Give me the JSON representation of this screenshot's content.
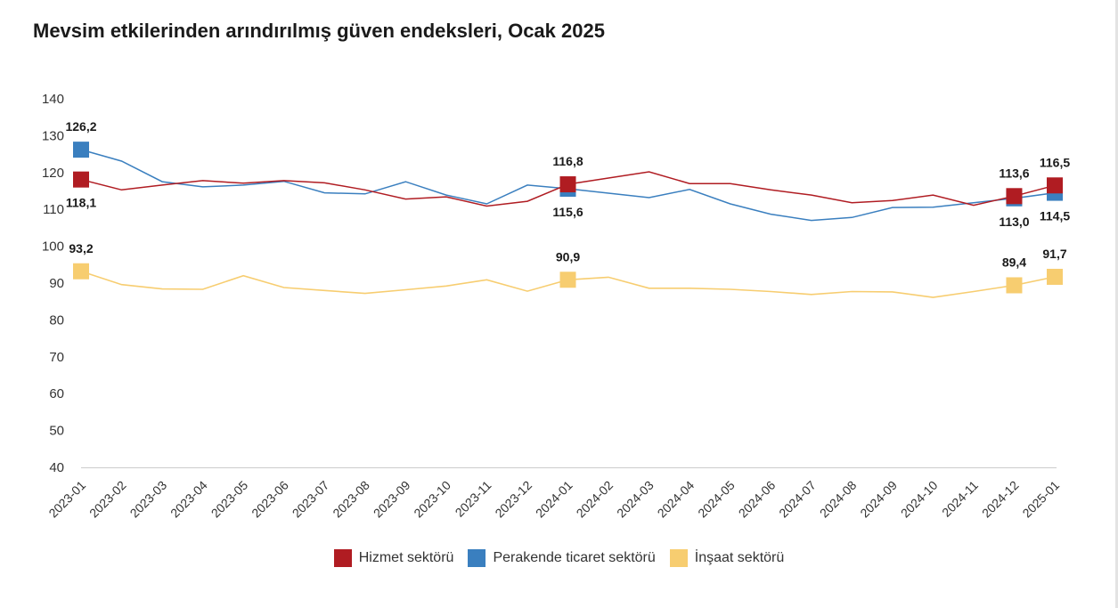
{
  "page": {
    "title": "Mevsim etkilerinden arındırılmış güven endeksleri, Ocak 2025"
  },
  "chart_data": {
    "type": "line",
    "title": "Mevsim etkilerinden arındırılmış güven endeksleri, Ocak 2025",
    "xlabel": "",
    "ylabel": "",
    "ylim": [
      40,
      140
    ],
    "yticks": [
      40,
      50,
      60,
      70,
      80,
      90,
      100,
      110,
      120,
      130,
      140
    ],
    "grid": false,
    "legend_position": "bottom",
    "categories": [
      "2023-01",
      "2023-02",
      "2023-03",
      "2023-04",
      "2023-05",
      "2023-06",
      "2023-07",
      "2023-08",
      "2023-09",
      "2023-10",
      "2023-11",
      "2023-12",
      "2024-01",
      "2024-02",
      "2024-03",
      "2024-04",
      "2024-05",
      "2024-06",
      "2024-07",
      "2024-08",
      "2024-09",
      "2024-10",
      "2024-11",
      "2024-12",
      "2025-01"
    ],
    "series": [
      {
        "name": "Hizmet sektörü",
        "color": "#b01c22",
        "values": [
          118.1,
          115.3,
          116.6,
          117.8,
          117.1,
          117.8,
          117.2,
          115.3,
          112.8,
          113.4,
          110.9,
          112.2,
          116.8,
          118.5,
          120.2,
          117.0,
          117.0,
          115.3,
          113.9,
          111.8,
          112.4,
          113.9,
          111.1,
          113.6,
          116.5
        ],
        "labels": {
          "0": "118,1",
          "12": "116,8",
          "23": "113,6",
          "24": "116,5"
        },
        "label_pos": {
          "0": "below",
          "12": "above",
          "23": "above",
          "24": "above"
        }
      },
      {
        "name": "Perakende ticaret sektörü",
        "color": "#3a7fbf",
        "values": [
          126.2,
          123.1,
          117.5,
          116.1,
          116.6,
          117.6,
          114.5,
          114.2,
          117.5,
          113.9,
          111.5,
          116.6,
          115.6,
          114.4,
          113.2,
          115.4,
          111.5,
          108.7,
          107.0,
          107.8,
          110.5,
          110.6,
          111.8,
          113.0,
          114.5
        ],
        "labels": {
          "0": "126,2",
          "12": "115,6",
          "23": "113,0",
          "24": "114,5"
        },
        "label_pos": {
          "0": "above",
          "12": "below",
          "23": "below",
          "24": "below"
        }
      },
      {
        "name": "İnşaat sektörü",
        "color": "#f7cd70",
        "values": [
          93.2,
          89.6,
          88.4,
          88.3,
          92.0,
          88.8,
          88.0,
          87.2,
          88.2,
          89.2,
          90.9,
          87.8,
          90.9,
          91.6,
          88.6,
          88.6,
          88.3,
          87.7,
          86.9,
          87.7,
          87.6,
          86.1,
          87.7,
          89.4,
          91.7
        ],
        "labels": {
          "0": "93,2",
          "12": "90,9",
          "23": "89,4",
          "24": "91,7"
        },
        "label_pos": {
          "0": "above",
          "12": "above",
          "23": "above",
          "24": "above"
        }
      }
    ]
  }
}
